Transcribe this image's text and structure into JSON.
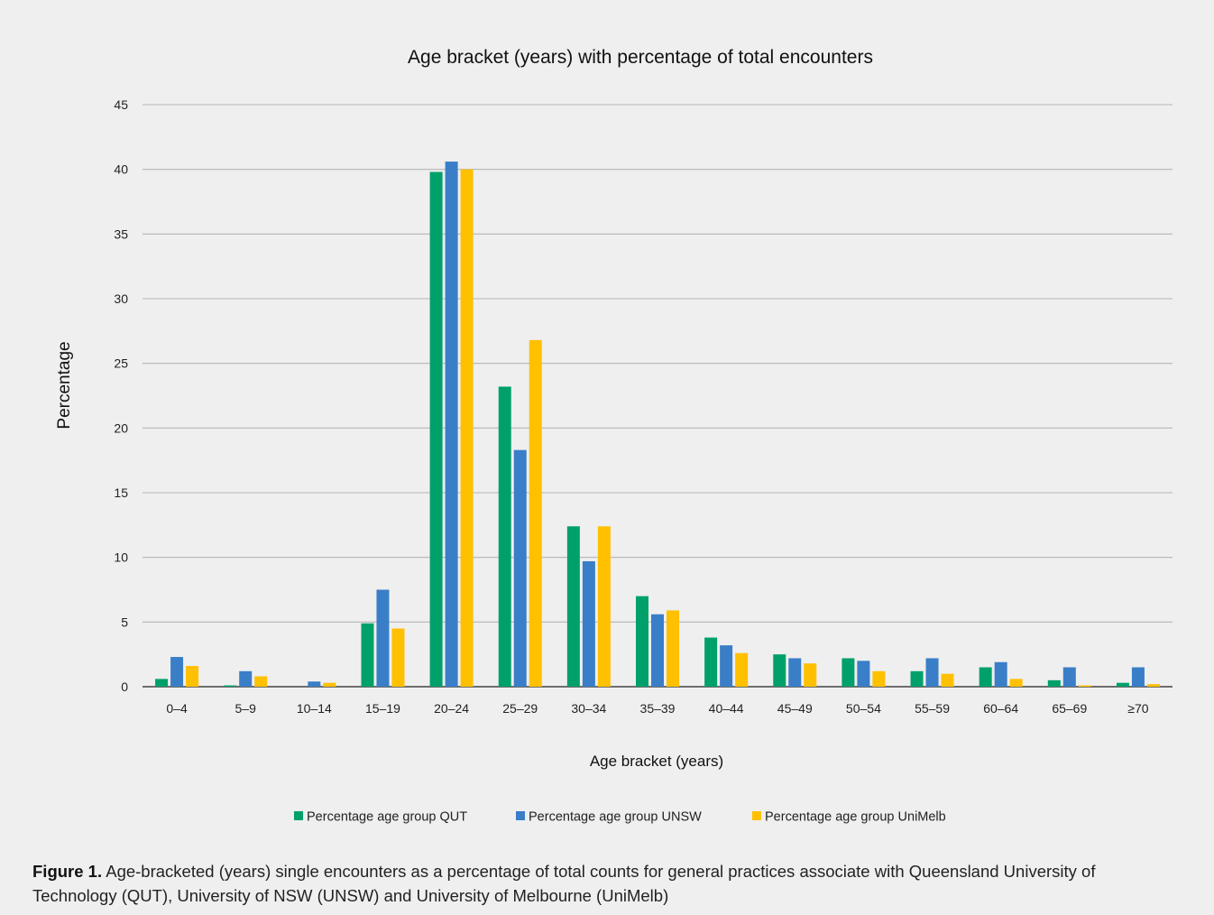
{
  "chart_data": {
    "type": "bar",
    "title": "Age bracket (years) with percentage of total encounters",
    "xlabel": "Age bracket (years)",
    "ylabel": "Percentage",
    "ylim": [
      0,
      45
    ],
    "yticks": [
      0,
      5,
      10,
      15,
      20,
      25,
      30,
      35,
      40,
      45
    ],
    "grid": true,
    "legend_position": "bottom",
    "categories": [
      "0–4",
      "5–9",
      "10–14",
      "15–19",
      "20–24",
      "25–29",
      "30–34",
      "35–39",
      "40–44",
      "45–49",
      "50–54",
      "55–59",
      "60–64",
      "65–69",
      "≥70"
    ],
    "series": [
      {
        "name": "Percentage age group QUT",
        "color": "#00a06a",
        "values": [
          0.6,
          0.1,
          0.0,
          4.9,
          39.8,
          23.2,
          12.4,
          7.0,
          3.8,
          2.5,
          2.2,
          1.2,
          1.5,
          0.5,
          0.3
        ]
      },
      {
        "name": "Percentage age group UNSW",
        "color": "#3a7ec8",
        "values": [
          2.3,
          1.2,
          0.4,
          7.5,
          40.6,
          18.3,
          9.7,
          5.6,
          3.2,
          2.2,
          2.0,
          2.2,
          1.9,
          1.5,
          1.5
        ]
      },
      {
        "name": "Percentage age group UniMelb",
        "color": "#ffc000",
        "values": [
          1.6,
          0.8,
          0.3,
          4.5,
          40.0,
          26.8,
          12.4,
          5.9,
          2.6,
          1.8,
          1.2,
          1.0,
          0.6,
          0.1,
          0.2
        ]
      }
    ]
  },
  "caption": {
    "label": "Figure 1.",
    "text": "Age-bracketed (years) single encounters as a percentage of total counts for general practices associate with Queensland University of Technology (QUT), University of NSW (UNSW) and University of Melbourne (UniMelb)"
  }
}
